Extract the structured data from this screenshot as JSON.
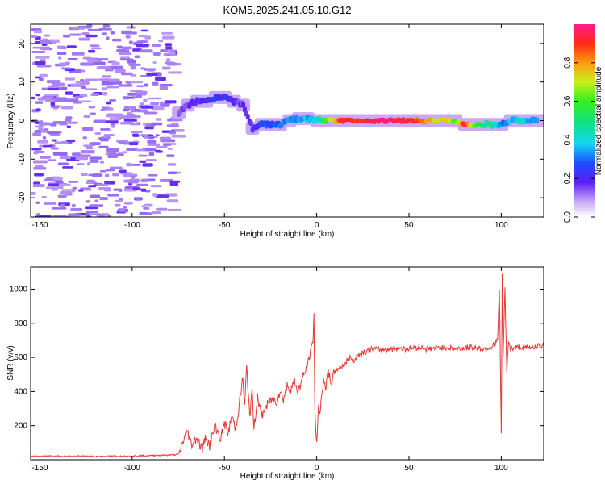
{
  "title": "KOM5.2025.241.05.10.G12",
  "chart_data": [
    {
      "type": "heatmap",
      "xlabel": "Height of straight line (km)",
      "ylabel": "Frequency (Hz)",
      "xlim": [
        -155,
        123
      ],
      "ylim": [
        -25,
        25
      ],
      "xticks": [
        -150,
        -100,
        -50,
        0,
        50,
        100
      ],
      "yticks": [
        -20,
        -10,
        0,
        10,
        20
      ],
      "colorbar": {
        "label": "Normalized spectral amplitude",
        "range": [
          0,
          1
        ],
        "ticks": [
          0.0,
          0.2,
          0.4,
          0.6,
          0.8
        ]
      },
      "signal_track": [
        {
          "x": -75,
          "y": 2,
          "amp": 0.15
        },
        {
          "x": -70,
          "y": 4,
          "amp": 0.18
        },
        {
          "x": -65,
          "y": 5,
          "amp": 0.2
        },
        {
          "x": -60,
          "y": 5,
          "amp": 0.22
        },
        {
          "x": -55,
          "y": 6,
          "amp": 0.25
        },
        {
          "x": -50,
          "y": 6,
          "amp": 0.22
        },
        {
          "x": -45,
          "y": 5,
          "amp": 0.18
        },
        {
          "x": -40,
          "y": 4,
          "amp": 0.15
        },
        {
          "x": -35,
          "y": -2,
          "amp": 0.2
        },
        {
          "x": -30,
          "y": -1,
          "amp": 0.25
        },
        {
          "x": -25,
          "y": -1,
          "amp": 0.28
        },
        {
          "x": -20,
          "y": -1,
          "amp": 0.3
        },
        {
          "x": -15,
          "y": 0,
          "amp": 0.32
        },
        {
          "x": -10,
          "y": 0.5,
          "amp": 0.35
        },
        {
          "x": -5,
          "y": 0.5,
          "amp": 0.35
        },
        {
          "x": 0,
          "y": 0,
          "amp": 0.4
        },
        {
          "x": 5,
          "y": 0,
          "amp": 0.6
        },
        {
          "x": 10,
          "y": 0,
          "amp": 0.8
        },
        {
          "x": 15,
          "y": 0,
          "amp": 0.95
        },
        {
          "x": 20,
          "y": 0,
          "amp": 0.9
        },
        {
          "x": 25,
          "y": 0,
          "amp": 0.92
        },
        {
          "x": 30,
          "y": 0,
          "amp": 0.95
        },
        {
          "x": 35,
          "y": 0,
          "amp": 0.97
        },
        {
          "x": 40,
          "y": 0,
          "amp": 0.98
        },
        {
          "x": 45,
          "y": 0,
          "amp": 0.95
        },
        {
          "x": 50,
          "y": 0,
          "amp": 0.9
        },
        {
          "x": 55,
          "y": 0,
          "amp": 0.85
        },
        {
          "x": 60,
          "y": 0,
          "amp": 0.8
        },
        {
          "x": 65,
          "y": 0,
          "amp": 0.7
        },
        {
          "x": 70,
          "y": 0,
          "amp": 0.75
        },
        {
          "x": 75,
          "y": 0,
          "amp": 0.6
        },
        {
          "x": 80,
          "y": -1,
          "amp": 0.95
        },
        {
          "x": 85,
          "y": -1,
          "amp": 0.6
        },
        {
          "x": 90,
          "y": -1,
          "amp": 0.5
        },
        {
          "x": 95,
          "y": -1,
          "amp": 0.45
        },
        {
          "x": 100,
          "y": -1,
          "amp": 0.3
        },
        {
          "x": 105,
          "y": 0,
          "amp": 0.35
        },
        {
          "x": 110,
          "y": 0,
          "amp": 0.4
        },
        {
          "x": 115,
          "y": 0,
          "amp": 0.35
        },
        {
          "x": 120,
          "y": 0,
          "amp": 0.3
        }
      ]
    },
    {
      "type": "line",
      "xlabel": "Height of straight line (km)",
      "ylabel": "SNR (v/v)",
      "xlim": [
        -155,
        123
      ],
      "ylim": [
        0,
        1130
      ],
      "xticks": [
        -150,
        -100,
        -50,
        0,
        50,
        100
      ],
      "yticks": [
        200,
        400,
        600,
        800,
        1000
      ],
      "color": "#e53935",
      "series": [
        {
          "name": "SNR",
          "x": [
            -155,
            -140,
            -120,
            -100,
            -90,
            -80,
            -75,
            -72,
            -70,
            -68,
            -65,
            -62,
            -60,
            -58,
            -55,
            -52,
            -50,
            -48,
            -46,
            -44,
            -42,
            -40,
            -39,
            -38,
            -37,
            -36,
            -35,
            -34,
            -32,
            -30,
            -28,
            -26,
            -24,
            -22,
            -20,
            -18,
            -16,
            -14,
            -12,
            -10,
            -8,
            -6,
            -5,
            -4,
            -3,
            -2,
            -1.5,
            -1,
            -0.5,
            0,
            0.5,
            1,
            2,
            3,
            4,
            5,
            6,
            8,
            10,
            12,
            15,
            18,
            20,
            22,
            25,
            28,
            30,
            35,
            40,
            45,
            50,
            55,
            60,
            65,
            70,
            75,
            80,
            85,
            90,
            95,
            98,
            99,
            100,
            100.5,
            101,
            102,
            103,
            104,
            105,
            110,
            115,
            120,
            123
          ],
          "y": [
            20,
            22,
            20,
            22,
            25,
            28,
            30,
            120,
            170,
            90,
            130,
            60,
            140,
            80,
            200,
            120,
            220,
            150,
            260,
            180,
            320,
            480,
            300,
            550,
            380,
            250,
            420,
            180,
            380,
            250,
            300,
            330,
            360,
            340,
            400,
            360,
            430,
            420,
            460,
            400,
            470,
            520,
            560,
            600,
            650,
            700,
            860,
            300,
            150,
            130,
            200,
            320,
            280,
            400,
            480,
            420,
            500,
            460,
            520,
            540,
            560,
            600,
            580,
            610,
            630,
            640,
            650,
            645,
            650,
            655,
            650,
            660,
            650,
            655,
            660,
            650,
            655,
            660,
            650,
            660,
            700,
            1000,
            150,
            1100,
            600,
            1000,
            520,
            700,
            650,
            660,
            655,
            670,
            665
          ]
        }
      ]
    }
  ]
}
